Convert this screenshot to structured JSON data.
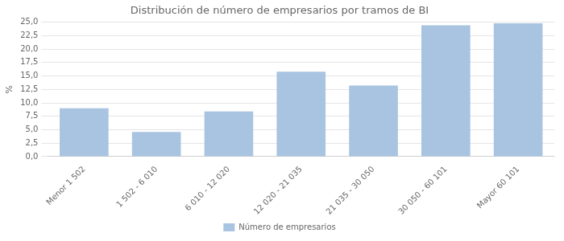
{
  "chart_data": {
    "type": "bar",
    "title": "Distribución de número de empresarios por tramos de BI",
    "ylabel": "%",
    "categories": [
      "Menor 1 502",
      "1 502 - 6 010",
      "6 010 - 12 020",
      "12 020 - 21 035",
      "21 035 - 30 050",
      "30 050 - 60 101",
      "Mayor 60 101"
    ],
    "series": [
      {
        "name": "Número de empresarios",
        "color": "#a8c4e0",
        "values": [
          9.0,
          4.6,
          8.4,
          15.8,
          13.2,
          24.4,
          24.8
        ]
      }
    ],
    "ylim": [
      0,
      25.0
    ],
    "yticks": [
      {
        "value": 0.0,
        "label": "0,0"
      },
      {
        "value": 2.5,
        "label": "2,5"
      },
      {
        "value": 5.0,
        "label": "5,0"
      },
      {
        "value": 7.5,
        "label": "7,5"
      },
      {
        "value": 10.0,
        "label": "10,0"
      },
      {
        "value": 12.5,
        "label": "12,5"
      },
      {
        "value": 15.0,
        "label": "15,0"
      },
      {
        "value": 17.5,
        "label": "17,5"
      },
      {
        "value": 20.0,
        "label": "20,0"
      },
      {
        "value": 22.5,
        "label": "22,5"
      },
      {
        "value": 25.0,
        "label": "25,0"
      }
    ],
    "grid": true,
    "legend": "bottom"
  }
}
